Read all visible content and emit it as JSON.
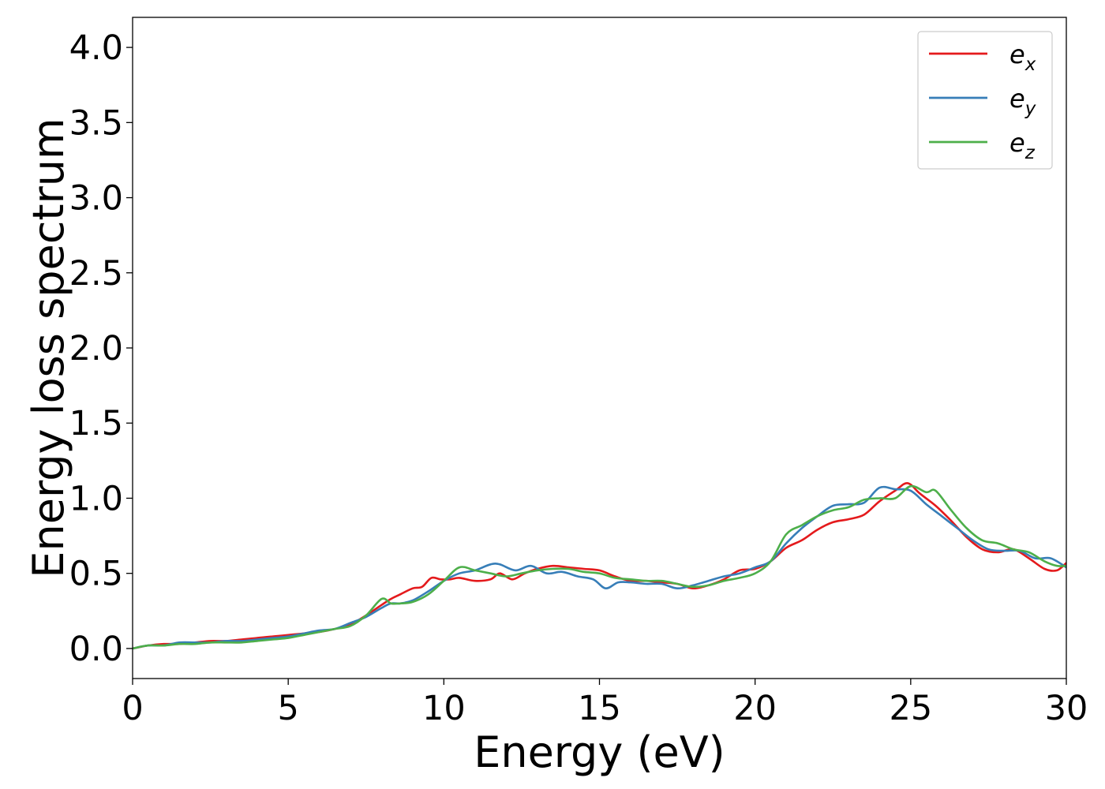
{
  "chart_data": {
    "type": "line",
    "xlabel": "Energy (eV)",
    "ylabel": "Energy loss spectrum",
    "xlim": [
      0,
      30
    ],
    "ylim": [
      -0.2,
      4.2
    ],
    "xticks": [
      0,
      5,
      10,
      15,
      20,
      25,
      30
    ],
    "xtick_labels": [
      "0",
      "5",
      "10",
      "15",
      "20",
      "25",
      "30"
    ],
    "yticks": [
      0.0,
      0.5,
      1.0,
      1.5,
      2.0,
      2.5,
      3.0,
      3.5,
      4.0
    ],
    "ytick_labels": [
      "0.0",
      "0.5",
      "1.0",
      "1.5",
      "2.0",
      "2.5",
      "3.0",
      "3.5",
      "4.0"
    ],
    "grid": false,
    "legend_position": "top-right",
    "series": [
      {
        "name": "e_x",
        "label_base": "e",
        "label_sub": "x",
        "color": "#e41a1c",
        "x": [
          0,
          0.5,
          1,
          1.5,
          2,
          2.5,
          3,
          3.5,
          4,
          4.5,
          5,
          5.5,
          6,
          6.5,
          7,
          7.5,
          8,
          8.3,
          8.6,
          9,
          9.3,
          9.6,
          9.9,
          10.2,
          10.5,
          11,
          11.5,
          11.8,
          12.2,
          12.6,
          13,
          13.5,
          14,
          14.5,
          15,
          15.5,
          16,
          16.5,
          17,
          17.5,
          18,
          18.5,
          19,
          19.5,
          20,
          20.5,
          21,
          21.5,
          22,
          22.5,
          23,
          23.5,
          24,
          24.5,
          24.9,
          25.3,
          25.8,
          26.3,
          26.8,
          27.3,
          27.8,
          28.3,
          28.8,
          29.3,
          29.7,
          30
        ],
        "y": [
          0.0,
          0.02,
          0.03,
          0.03,
          0.04,
          0.05,
          0.05,
          0.06,
          0.07,
          0.08,
          0.09,
          0.1,
          0.11,
          0.13,
          0.16,
          0.22,
          0.29,
          0.33,
          0.36,
          0.4,
          0.41,
          0.47,
          0.46,
          0.46,
          0.47,
          0.45,
          0.46,
          0.5,
          0.46,
          0.5,
          0.53,
          0.55,
          0.54,
          0.53,
          0.52,
          0.48,
          0.45,
          0.45,
          0.44,
          0.43,
          0.4,
          0.42,
          0.46,
          0.52,
          0.53,
          0.58,
          0.67,
          0.72,
          0.79,
          0.84,
          0.86,
          0.89,
          0.98,
          1.05,
          1.1,
          1.03,
          0.95,
          0.85,
          0.74,
          0.66,
          0.64,
          0.66,
          0.6,
          0.53,
          0.52,
          0.57
        ]
      },
      {
        "name": "e_y",
        "label_base": "e",
        "label_sub": "y",
        "color": "#377eb8",
        "x": [
          0,
          0.5,
          1,
          1.5,
          2,
          2.5,
          3,
          3.5,
          4,
          4.5,
          5,
          5.5,
          6,
          6.5,
          7,
          7.5,
          8,
          8.3,
          8.6,
          9,
          9.5,
          10,
          10.5,
          11,
          11.5,
          11.8,
          12.3,
          12.8,
          13.3,
          13.8,
          14.3,
          14.8,
          15.2,
          15.6,
          16,
          16.5,
          17,
          17.5,
          18,
          18.5,
          19,
          19.5,
          20,
          20.5,
          21,
          21.5,
          22,
          22.5,
          23,
          23.5,
          24,
          24.5,
          25,
          25.5,
          26,
          26.5,
          27,
          27.5,
          28,
          28.5,
          29,
          29.5,
          30
        ],
        "y": [
          0.0,
          0.02,
          0.02,
          0.04,
          0.04,
          0.04,
          0.05,
          0.05,
          0.06,
          0.07,
          0.08,
          0.1,
          0.12,
          0.13,
          0.17,
          0.21,
          0.27,
          0.3,
          0.3,
          0.32,
          0.38,
          0.45,
          0.5,
          0.52,
          0.56,
          0.56,
          0.52,
          0.55,
          0.5,
          0.51,
          0.48,
          0.46,
          0.4,
          0.44,
          0.44,
          0.43,
          0.43,
          0.4,
          0.42,
          0.45,
          0.48,
          0.5,
          0.54,
          0.58,
          0.7,
          0.8,
          0.88,
          0.95,
          0.96,
          0.97,
          1.07,
          1.06,
          1.05,
          0.96,
          0.88,
          0.8,
          0.72,
          0.66,
          0.65,
          0.65,
          0.6,
          0.6,
          0.54
        ]
      },
      {
        "name": "e_z",
        "label_base": "e",
        "label_sub": "z",
        "color": "#4daf4a",
        "x": [
          0,
          0.5,
          1,
          1.5,
          2,
          2.5,
          3,
          3.5,
          4,
          4.5,
          5,
          5.5,
          6,
          6.5,
          7,
          7.5,
          8,
          8.3,
          8.6,
          9,
          9.5,
          10,
          10.5,
          11,
          11.5,
          12,
          12.5,
          13,
          13.5,
          14,
          14.5,
          15,
          15.5,
          16,
          16.5,
          17,
          17.5,
          18,
          18.5,
          19,
          19.5,
          20,
          20.5,
          21,
          21.5,
          22,
          22.5,
          23,
          23.5,
          24,
          24.5,
          25,
          25.5,
          25.8,
          26.3,
          26.8,
          27.3,
          27.8,
          28.3,
          28.8,
          29.3,
          29.7,
          30
        ],
        "y": [
          0.0,
          0.02,
          0.02,
          0.03,
          0.03,
          0.04,
          0.04,
          0.04,
          0.05,
          0.06,
          0.07,
          0.09,
          0.11,
          0.13,
          0.15,
          0.22,
          0.33,
          0.3,
          0.3,
          0.31,
          0.36,
          0.45,
          0.54,
          0.52,
          0.5,
          0.48,
          0.5,
          0.52,
          0.53,
          0.53,
          0.51,
          0.5,
          0.47,
          0.46,
          0.45,
          0.45,
          0.43,
          0.41,
          0.42,
          0.45,
          0.47,
          0.5,
          0.58,
          0.76,
          0.82,
          0.88,
          0.92,
          0.94,
          0.99,
          1.0,
          1.0,
          1.08,
          1.04,
          1.05,
          0.92,
          0.8,
          0.72,
          0.7,
          0.66,
          0.64,
          0.58,
          0.55,
          0.55
        ]
      }
    ]
  }
}
